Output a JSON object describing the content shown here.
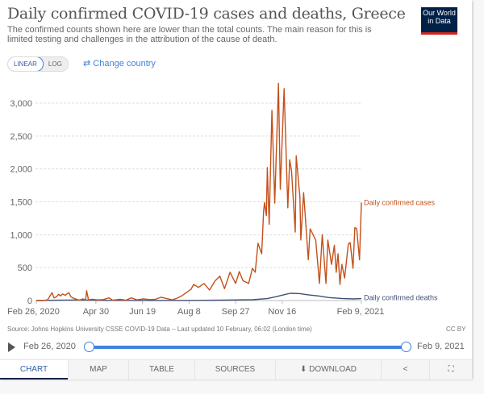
{
  "header": {
    "title": "Daily confirmed COVID-19 cases and deaths, Greece",
    "subtitle": "The confirmed counts shown here are lower than the total counts. The main reason for this is limited testing and challenges in the attribution of the cause of death.",
    "logo_text": "Our World in Data"
  },
  "controls": {
    "linear": "LINEAR",
    "log": "LOG",
    "change_country": "⇄ Change country"
  },
  "colors": {
    "cases": "#c4501a",
    "deaths": "#404f76",
    "accent": "#3f82e0",
    "logo_bg": "#002147"
  },
  "chart_data": {
    "type": "line",
    "title": "Daily confirmed COVID-19 cases and deaths, Greece",
    "xlim": [
      "2020-02-26",
      "2021-02-09"
    ],
    "ylim": [
      0,
      3300
    ],
    "yscale": "linear",
    "grid": true,
    "y_ticks": [
      0,
      500,
      1000,
      1500,
      2000,
      2500,
      3000
    ],
    "y_tick_labels": [
      "0",
      "500",
      "1,000",
      "1,500",
      "2,000",
      "2,500",
      "3,000"
    ],
    "x_ticks": [
      "2020-02-26",
      "2020-04-30",
      "2020-06-19",
      "2020-08-08",
      "2020-09-27",
      "2020-11-16",
      "2021-02-09"
    ],
    "x_tick_labels": [
      "Feb 26, 2020",
      "Apr 30",
      "Jun 19",
      "Aug 8",
      "Sep 27",
      "Nov 16",
      "Feb 9, 2021"
    ],
    "legend": "inline-right",
    "series": [
      {
        "name": "Daily confirmed cases",
        "color": "#c4501a",
        "points": [
          [
            "2020-02-26",
            0
          ],
          [
            "2020-03-04",
            0
          ],
          [
            "2020-03-09",
            10
          ],
          [
            "2020-03-12",
            75
          ],
          [
            "2020-03-14",
            120
          ],
          [
            "2020-03-16",
            40
          ],
          [
            "2020-03-19",
            60
          ],
          [
            "2020-03-21",
            95
          ],
          [
            "2020-03-23",
            70
          ],
          [
            "2020-03-25",
            100
          ],
          [
            "2020-03-28",
            80
          ],
          [
            "2020-04-01",
            120
          ],
          [
            "2020-04-03",
            60
          ],
          [
            "2020-04-05",
            40
          ],
          [
            "2020-04-09",
            20
          ],
          [
            "2020-04-12",
            5
          ],
          [
            "2020-04-16",
            25
          ],
          [
            "2020-04-19",
            10
          ],
          [
            "2020-04-20",
            150
          ],
          [
            "2020-04-22",
            10
          ],
          [
            "2020-04-26",
            20
          ],
          [
            "2020-05-02",
            10
          ],
          [
            "2020-05-08",
            15
          ],
          [
            "2020-05-14",
            40
          ],
          [
            "2020-05-18",
            5
          ],
          [
            "2020-05-26",
            20
          ],
          [
            "2020-06-01",
            5
          ],
          [
            "2020-06-07",
            40
          ],
          [
            "2020-06-13",
            10
          ],
          [
            "2020-06-20",
            25
          ],
          [
            "2020-06-27",
            15
          ],
          [
            "2020-07-03",
            20
          ],
          [
            "2020-07-09",
            50
          ],
          [
            "2020-07-15",
            30
          ],
          [
            "2020-07-21",
            10
          ],
          [
            "2020-07-26",
            35
          ],
          [
            "2020-07-31",
            70
          ],
          [
            "2020-08-07",
            140
          ],
          [
            "2020-08-10",
            170
          ],
          [
            "2020-08-13",
            245
          ],
          [
            "2020-08-18",
            200
          ],
          [
            "2020-08-24",
            260
          ],
          [
            "2020-08-30",
            160
          ],
          [
            "2020-09-05",
            300
          ],
          [
            "2020-09-10",
            370
          ],
          [
            "2020-09-15",
            180
          ],
          [
            "2020-09-21",
            430
          ],
          [
            "2020-09-27",
            260
          ],
          [
            "2020-10-01",
            440
          ],
          [
            "2020-10-05",
            300
          ],
          [
            "2020-10-11",
            260
          ],
          [
            "2020-10-15",
            490
          ],
          [
            "2020-10-18",
            430
          ],
          [
            "2020-10-21",
            870
          ],
          [
            "2020-10-25",
            710
          ],
          [
            "2020-10-27",
            1360
          ],
          [
            "2020-10-28",
            1490
          ],
          [
            "2020-10-30",
            1290
          ],
          [
            "2020-10-31",
            2020
          ],
          [
            "2020-11-02",
            1160
          ],
          [
            "2020-11-05",
            2890
          ],
          [
            "2020-11-06",
            2420
          ],
          [
            "2020-11-08",
            1480
          ],
          [
            "2020-11-12",
            3300
          ],
          [
            "2020-11-14",
            1690
          ],
          [
            "2020-11-18",
            3220
          ],
          [
            "2020-11-22",
            1410
          ],
          [
            "2020-11-24",
            2140
          ],
          [
            "2020-11-26",
            1970
          ],
          [
            "2020-11-30",
            1040
          ],
          [
            "2020-12-01",
            2200
          ],
          [
            "2020-12-05",
            1570
          ],
          [
            "2020-12-06",
            920
          ],
          [
            "2020-12-09",
            1640
          ],
          [
            "2020-12-14",
            620
          ],
          [
            "2020-12-16",
            1090
          ],
          [
            "2020-12-22",
            920
          ],
          [
            "2020-12-26",
            260
          ],
          [
            "2020-12-29",
            1000
          ],
          [
            "2021-01-02",
            260
          ],
          [
            "2021-01-04",
            920
          ],
          [
            "2021-01-08",
            550
          ],
          [
            "2021-01-11",
            840
          ],
          [
            "2021-01-13",
            430
          ],
          [
            "2021-01-15",
            710
          ],
          [
            "2021-01-17",
            245
          ],
          [
            "2021-01-19",
            550
          ],
          [
            "2021-01-22",
            340
          ],
          [
            "2021-01-26",
            860
          ],
          [
            "2021-01-28",
            880
          ],
          [
            "2021-01-31",
            490
          ],
          [
            "2021-02-02",
            1110
          ],
          [
            "2021-02-04",
            1090
          ],
          [
            "2021-02-07",
            620
          ],
          [
            "2021-02-09",
            1490
          ]
        ]
      },
      {
        "name": "Daily confirmed deaths",
        "color": "#404f76",
        "points": [
          [
            "2020-02-26",
            0
          ],
          [
            "2020-03-20",
            5
          ],
          [
            "2020-04-10",
            8
          ],
          [
            "2020-05-10",
            2
          ],
          [
            "2020-07-01",
            1
          ],
          [
            "2020-08-15",
            3
          ],
          [
            "2020-09-15",
            6
          ],
          [
            "2020-10-15",
            12
          ],
          [
            "2020-10-31",
            30
          ],
          [
            "2020-11-10",
            60
          ],
          [
            "2020-11-20",
            95
          ],
          [
            "2020-11-25",
            110
          ],
          [
            "2020-12-05",
            105
          ],
          [
            "2020-12-15",
            85
          ],
          [
            "2020-12-25",
            70
          ],
          [
            "2021-01-05",
            45
          ],
          [
            "2021-01-20",
            30
          ],
          [
            "2021-02-01",
            25
          ],
          [
            "2021-02-09",
            30
          ]
        ]
      }
    ]
  },
  "footer": {
    "source": "Source: Johns Hopkins University CSSE COVID-19 Data – Last updated 10 February, 06:02 (London time)",
    "license": "CC BY"
  },
  "timeline": {
    "start": "Feb 26, 2020",
    "end": "Feb 9, 2021"
  },
  "tabs": [
    {
      "label": "CHART",
      "active": true
    },
    {
      "label": "MAP"
    },
    {
      "label": "TABLE"
    },
    {
      "label": "SOURCES"
    },
    {
      "label": "⬇ DOWNLOAD"
    },
    {
      "label": "share-icon"
    },
    {
      "label": "fullscreen-icon"
    }
  ]
}
